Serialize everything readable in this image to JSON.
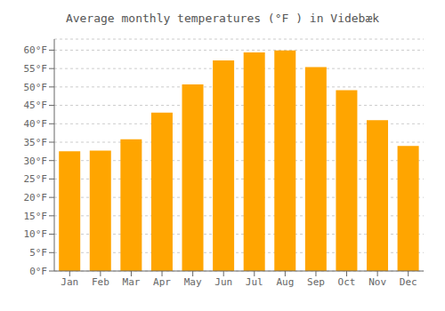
{
  "chart_data": {
    "type": "bar",
    "title": "Average monthly temperatures (°F ) in Videbæk",
    "categories": [
      "Jan",
      "Feb",
      "Mar",
      "Apr",
      "May",
      "Jun",
      "Jul",
      "Aug",
      "Sep",
      "Oct",
      "Nov",
      "Dec"
    ],
    "values": [
      32.5,
      32.7,
      35.8,
      43.0,
      50.7,
      57.2,
      59.4,
      59.9,
      55.4,
      49.1,
      41.0,
      34.0
    ],
    "color": "#FFA500",
    "ylim": [
      0,
      63
    ],
    "yticks": [
      {
        "value": 0,
        "label": "0°F"
      },
      {
        "value": 5,
        "label": "5°F"
      },
      {
        "value": 10,
        "label": "10°F"
      },
      {
        "value": 15,
        "label": "15°F"
      },
      {
        "value": 20,
        "label": "20°F"
      },
      {
        "value": 25,
        "label": "25°F"
      },
      {
        "value": 30,
        "label": "30°F"
      },
      {
        "value": 35,
        "label": "35°F"
      },
      {
        "value": 40,
        "label": "40°F"
      },
      {
        "value": 45,
        "label": "45°F"
      },
      {
        "value": 50,
        "label": "50°F"
      },
      {
        "value": 55,
        "label": "55°F"
      },
      {
        "value": 60,
        "label": "60°F"
      }
    ],
    "grid": true
  }
}
